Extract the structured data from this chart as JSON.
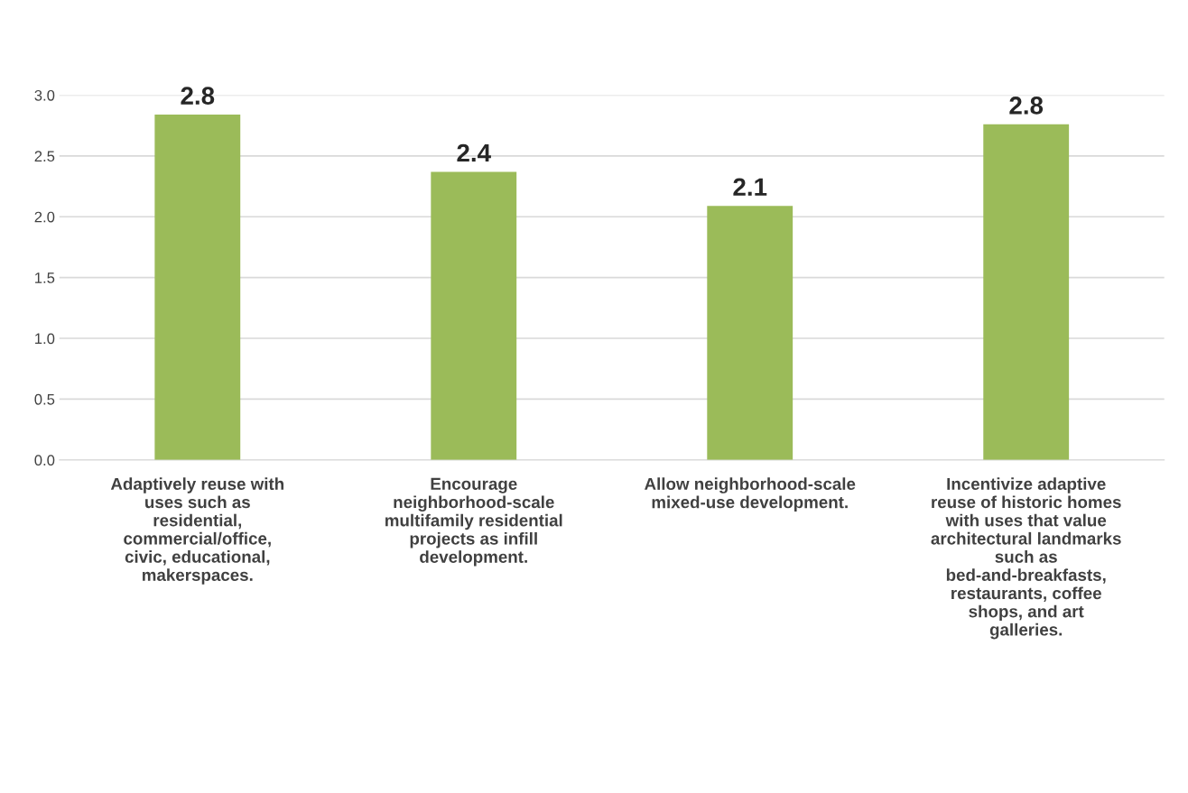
{
  "chart_data": {
    "type": "bar",
    "categories": [
      "Adaptively reuse with uses such as residential, commercial/office, civic, educational, makerspaces.",
      "Encourage neighborhood-scale multifamily residential projects as infill development.",
      "Allow neighborhood-scale mixed-use development.",
      "Incentivize adaptive reuse of historic homes with uses that value architectural landmarks such as bed-and-breakfasts, restaurants, coffee shops, and art galleries."
    ],
    "values": [
      2.84,
      2.37,
      2.09,
      2.76
    ],
    "value_labels": [
      "2.8",
      "2.4",
      "2.1",
      "2.8"
    ],
    "color": "#9bbb59",
    "ylim": [
      0,
      3.0
    ],
    "yticks": [
      {
        "value": 0,
        "label": "0.0"
      },
      {
        "value": 0.5,
        "label": "0.5"
      },
      {
        "value": 1.0,
        "label": "1.0"
      },
      {
        "value": 1.5,
        "label": "1.5"
      },
      {
        "value": 2.0,
        "label": "2.0"
      },
      {
        "value": 2.5,
        "label": "2.5"
      },
      {
        "value": 3.0,
        "label": "3.0"
      }
    ],
    "grid": "y",
    "legend": false
  }
}
